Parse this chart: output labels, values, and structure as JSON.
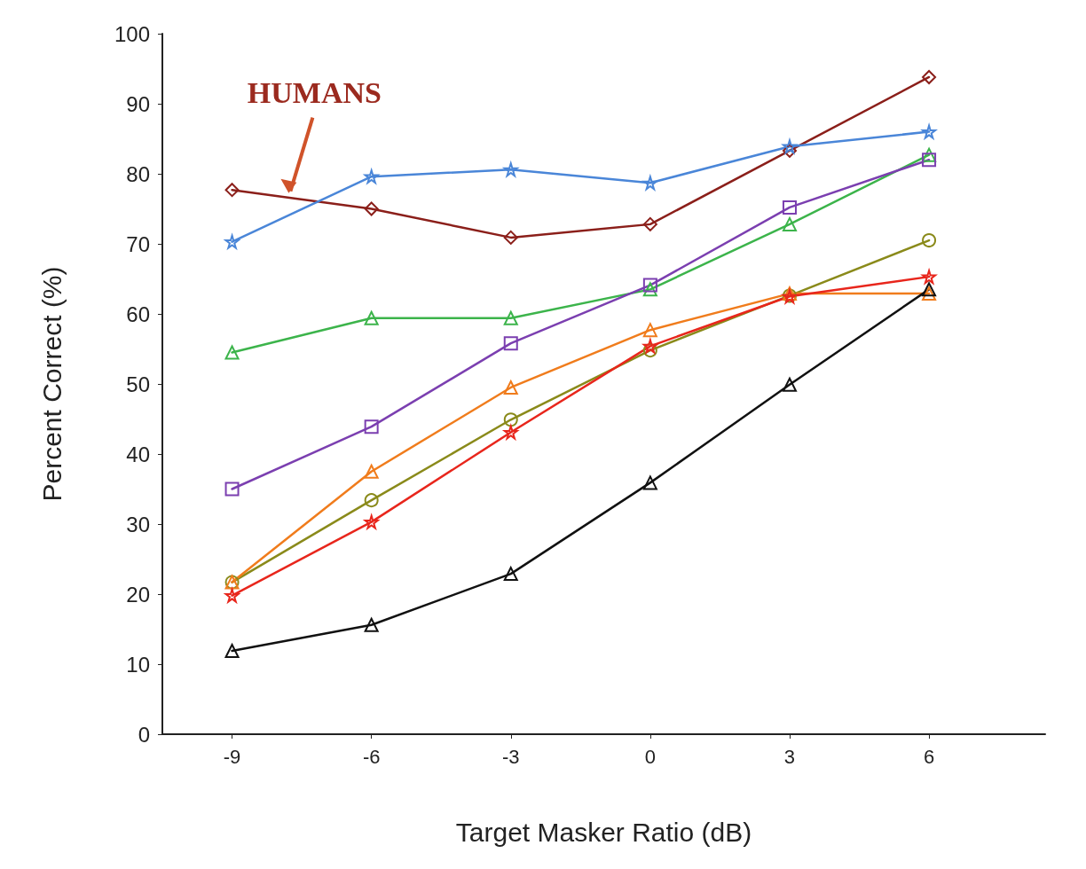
{
  "chart_data": {
    "type": "line",
    "xlabel": "Target Masker Ratio (dB)",
    "ylabel": "Percent Correct (%)",
    "x": [
      -9,
      -6,
      -3,
      0,
      3,
      6
    ],
    "xlim": [
      -10.5,
      8.5
    ],
    "xticks": [
      -9,
      -6,
      -3,
      0,
      3,
      6
    ],
    "ylim": [
      0,
      100
    ],
    "yticks": [
      0,
      10,
      20,
      30,
      40,
      50,
      60,
      70,
      80,
      90,
      100
    ],
    "line_style": "solid",
    "annotations": [
      {
        "text": "HUMANS",
        "x": -7.8,
        "y": 77
      }
    ],
    "series": [
      {
        "color": "#8b1f1a",
        "marker": "diamond",
        "values": [
          77.7,
          75,
          70.9,
          72.8,
          83.3,
          93.8
        ]
      },
      {
        "color": "#4a86d8",
        "marker": "star",
        "values": [
          70.3,
          79.6,
          80.6,
          78.7,
          83.9,
          86
        ]
      },
      {
        "color": "#3cb44b",
        "marker": "triangle",
        "values": [
          54.5,
          59.4,
          59.4,
          63.5,
          72.8,
          82.7
        ]
      },
      {
        "color": "#7b3fb0",
        "marker": "square",
        "values": [
          35,
          43.9,
          55.8,
          64.1,
          75.2,
          82
        ]
      },
      {
        "color": "#8a8a1a",
        "marker": "circle",
        "values": [
          21.7,
          33.4,
          44.9,
          54.8,
          62.6,
          70.5
        ]
      },
      {
        "color": "#f07c1c",
        "marker": "triangle",
        "values": [
          21.7,
          37.5,
          49.5,
          57.7,
          62.9,
          62.9
        ]
      },
      {
        "color": "#e8261c",
        "marker": "star",
        "values": [
          19.8,
          30.3,
          43.1,
          55.4,
          62.5,
          65.3
        ]
      },
      {
        "color": "#111111",
        "marker": "triangle",
        "values": [
          11.9,
          15.6,
          22.9,
          35.9,
          49.9,
          63.5
        ]
      }
    ]
  }
}
